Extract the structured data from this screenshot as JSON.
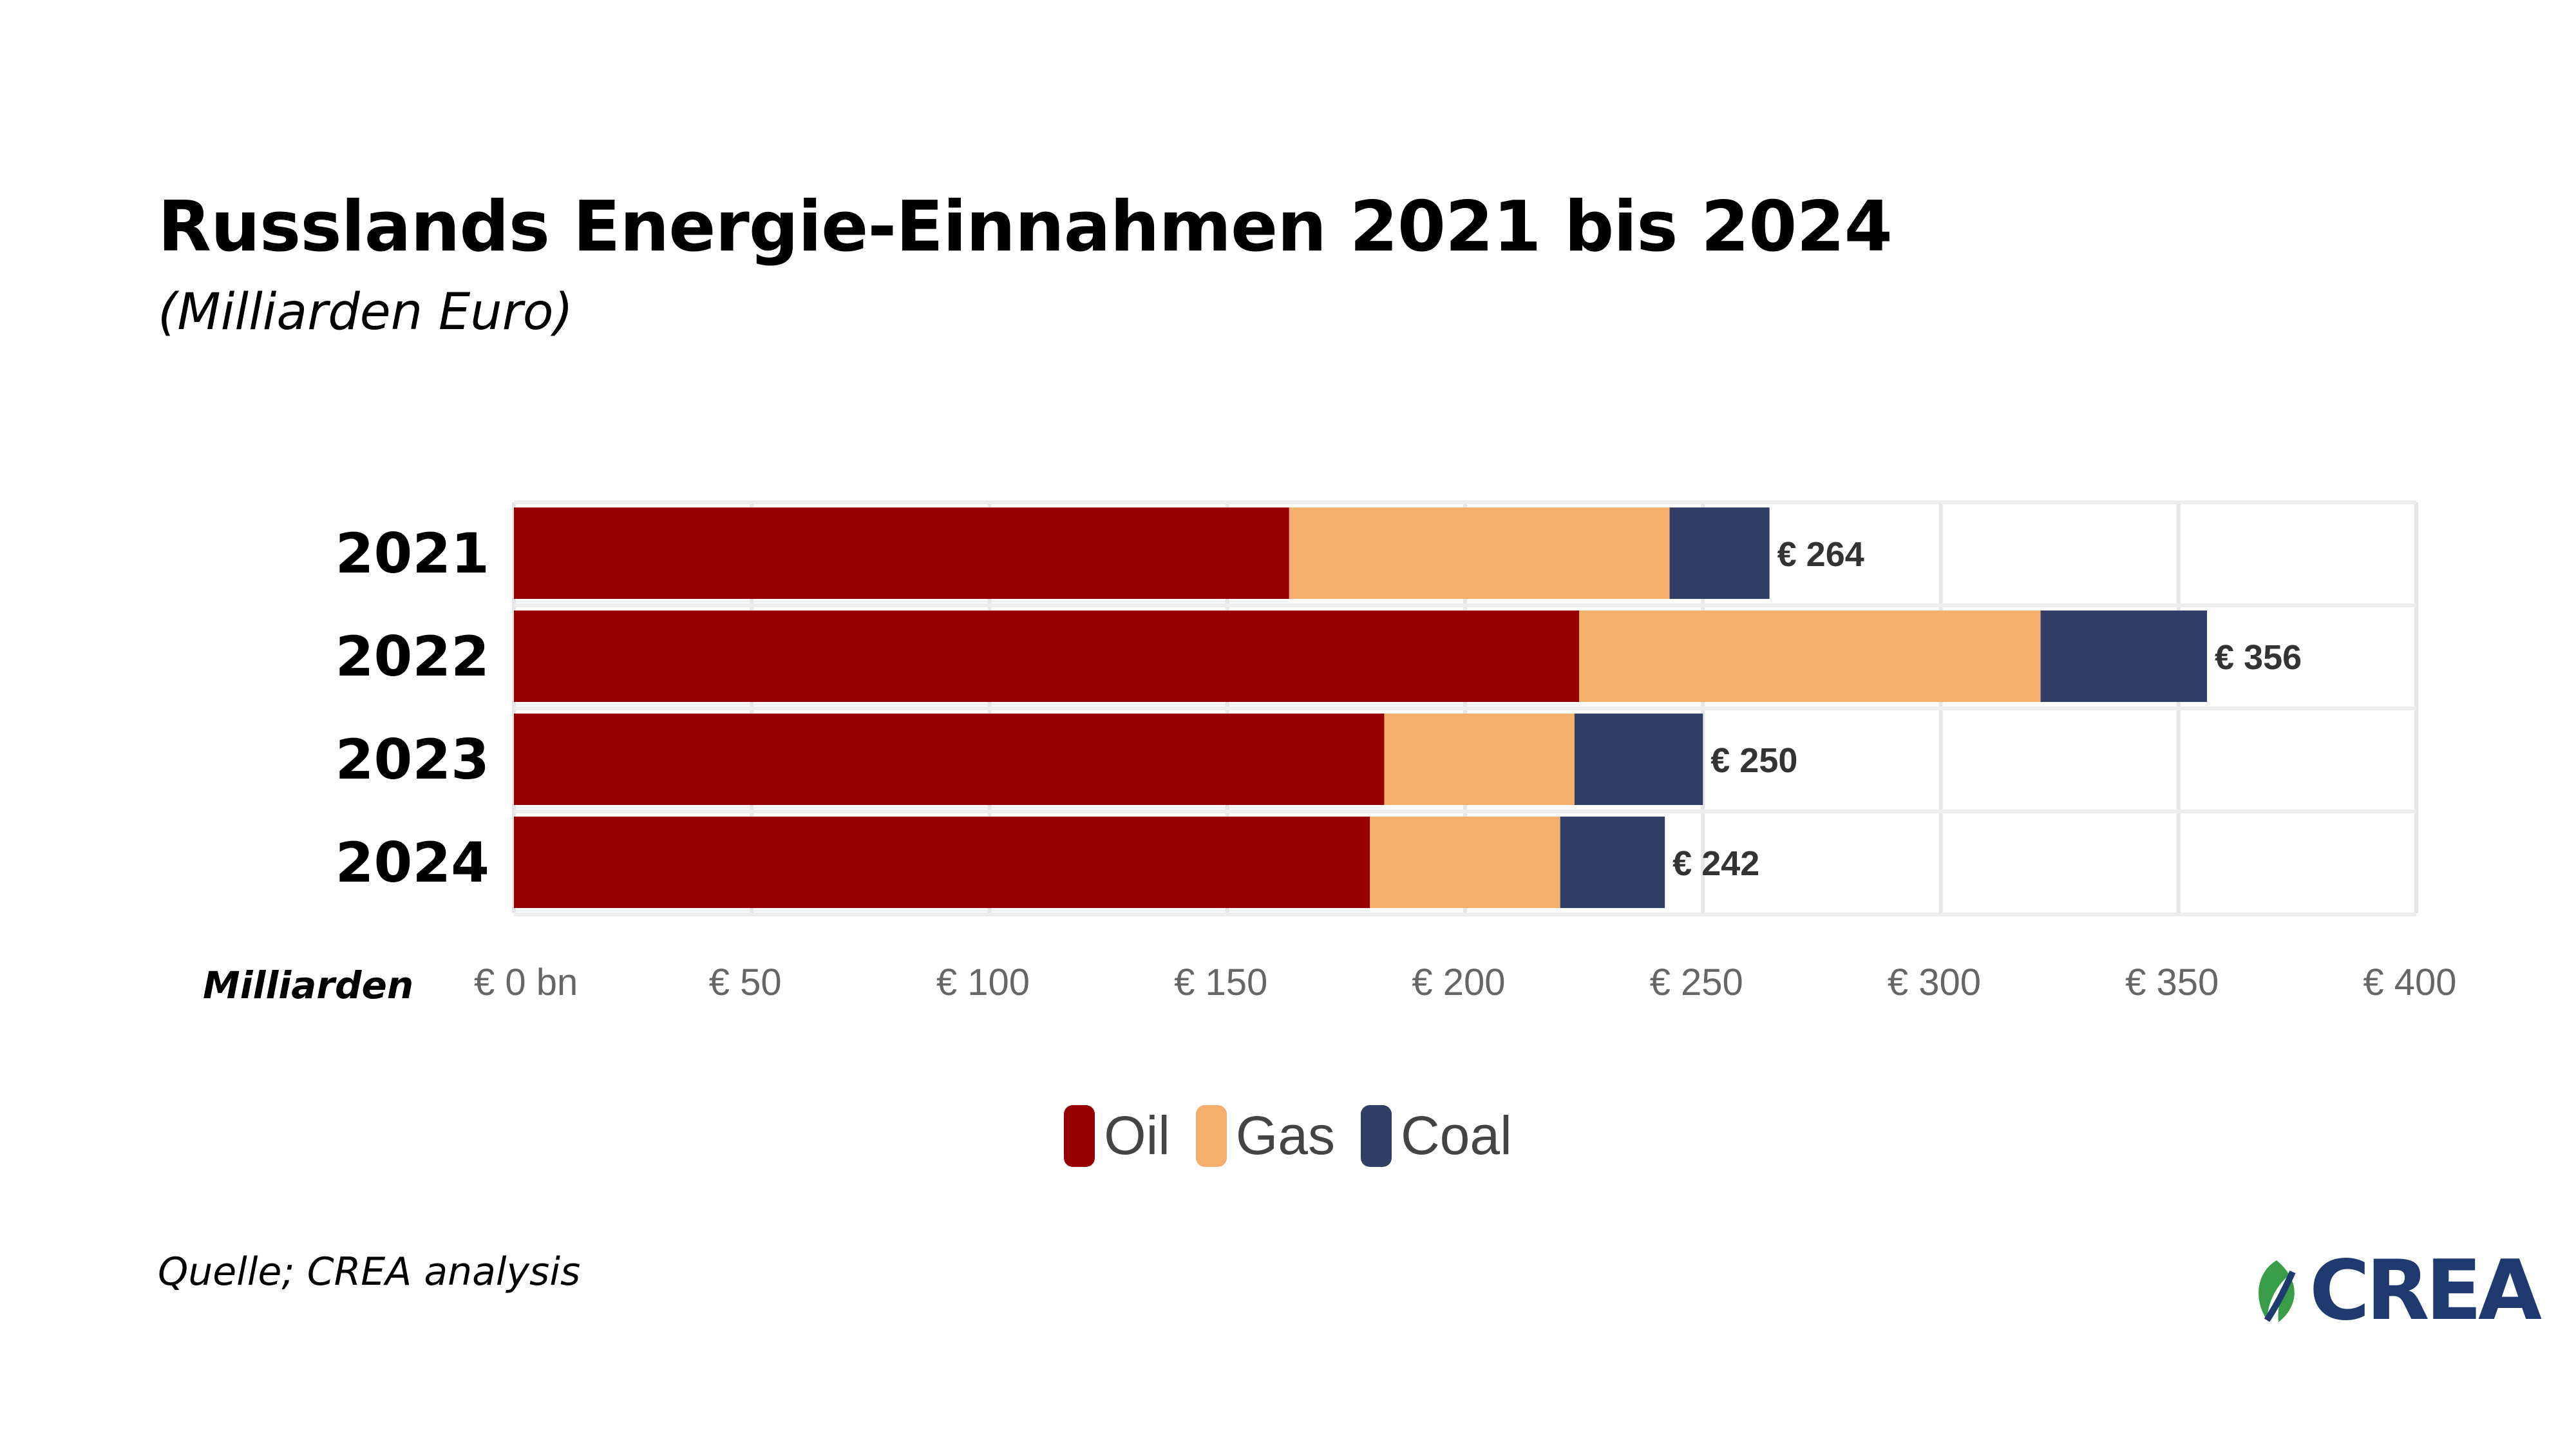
{
  "title": "Russlands Energie-Einnahmen 2021 bis 2024",
  "subtitle": "(Milliarden Euro)",
  "source": "Quelle; CREA analysis",
  "logo": {
    "text": "CREA",
    "colors": [
      "#1e3a6e",
      "#3a9d4a"
    ]
  },
  "chart_data": {
    "type": "bar",
    "orientation": "horizontal",
    "stacked": true,
    "categories": [
      "2021",
      "2022",
      "2023",
      "2024"
    ],
    "series": [
      {
        "name": "Oil",
        "color": "#960000",
        "values": [
          163,
          224,
          183,
          180
        ]
      },
      {
        "name": "Gas",
        "color": "#f5b06e",
        "values": [
          80,
          97,
          40,
          40
        ]
      },
      {
        "name": "Coal",
        "color": "#313e66",
        "values": [
          21,
          35,
          27,
          22
        ]
      }
    ],
    "totals": [
      "€ 264",
      "€ 356",
      "€ 250",
      "€ 242"
    ],
    "xlabel": "Milliarden",
    "xlim": [
      0,
      400
    ],
    "xticks": [
      0,
      50,
      100,
      150,
      200,
      250,
      300,
      350,
      400
    ],
    "xtick_labels": [
      "€ 0 bn",
      "€ 50",
      "€ 100",
      "€ 150",
      "€ 200",
      "€ 250",
      "€ 300",
      "€ 350",
      "€ 400"
    ],
    "grid": true,
    "legend_position": "bottom-center"
  }
}
